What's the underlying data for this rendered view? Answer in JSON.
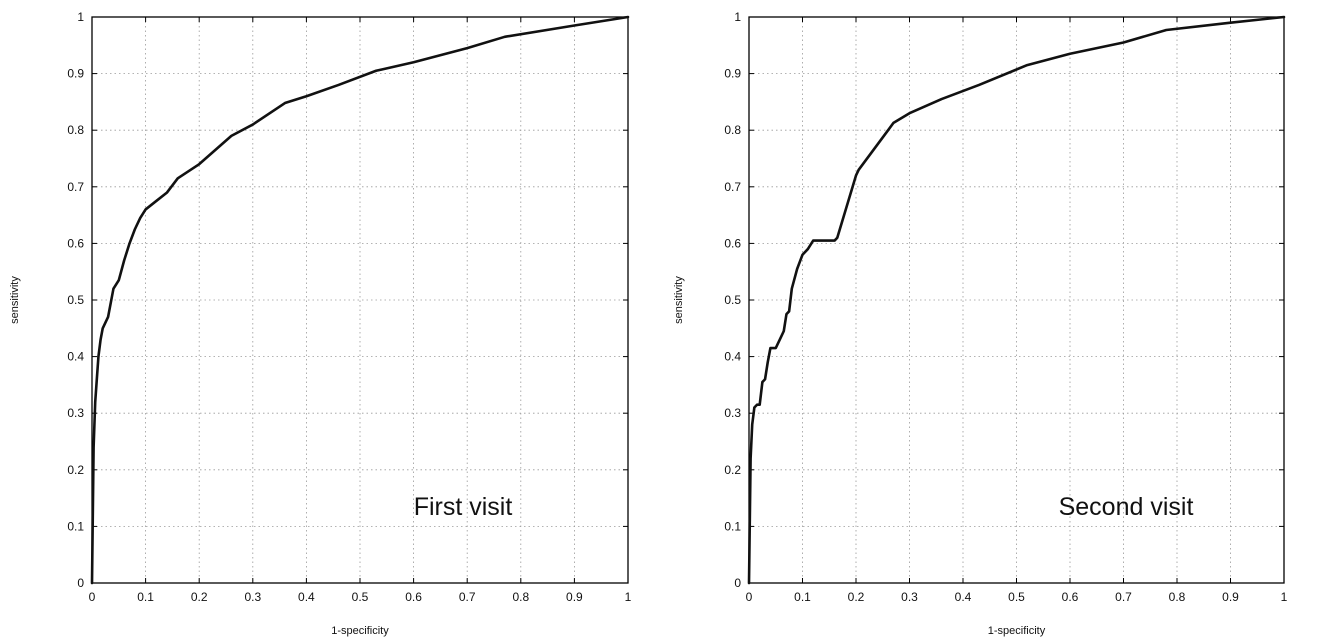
{
  "chart_data": [
    {
      "type": "line",
      "xlabel": "1-specificity",
      "ylabel": "sensitivity",
      "annotation": "First visit",
      "xlim": [
        0,
        1
      ],
      "ylim": [
        0,
        1
      ],
      "xticks": [
        "0",
        "0.1",
        "0.2",
        "0.3",
        "0.4",
        "0.5",
        "0.6",
        "0.7",
        "0.8",
        "0.9",
        "1"
      ],
      "yticks": [
        "0",
        "0.1",
        "0.2",
        "0.3",
        "0.4",
        "0.5",
        "0.6",
        "0.7",
        "0.8",
        "0.9",
        "1"
      ],
      "grid": true,
      "series": [
        {
          "x": [
            0,
            0.003,
            0.006,
            0.009,
            0.012,
            0.016,
            0.02,
            0.03,
            0.04,
            0.05,
            0.06,
            0.07,
            0.08,
            0.09,
            0.1,
            0.12,
            0.14,
            0.16,
            0.2,
            0.26,
            0.3,
            0.36,
            0.4,
            0.46,
            0.53,
            0.6,
            0.7,
            0.77,
            0.9,
            1.0
          ],
          "y": [
            0,
            0.24,
            0.32,
            0.36,
            0.4,
            0.43,
            0.45,
            0.47,
            0.52,
            0.535,
            0.57,
            0.6,
            0.625,
            0.645,
            0.66,
            0.675,
            0.69,
            0.715,
            0.74,
            0.79,
            0.81,
            0.848,
            0.86,
            0.88,
            0.905,
            0.92,
            0.945,
            0.965,
            0.985,
            1.0
          ]
        }
      ]
    },
    {
      "type": "line",
      "xlabel": "1-specificity",
      "ylabel": "sensitivity",
      "annotation": "Second visit",
      "xlim": [
        0,
        1
      ],
      "ylim": [
        0,
        1
      ],
      "xticks": [
        "0",
        "0.1",
        "0.2",
        "0.3",
        "0.4",
        "0.5",
        "0.6",
        "0.7",
        "0.8",
        "0.9",
        "1"
      ],
      "yticks": [
        "0",
        "0.1",
        "0.2",
        "0.3",
        "0.4",
        "0.5",
        "0.6",
        "0.7",
        "0.8",
        "0.9",
        "1"
      ],
      "grid": true,
      "series": [
        {
          "x": [
            0,
            0.003,
            0.006,
            0.01,
            0.015,
            0.02,
            0.025,
            0.03,
            0.035,
            0.04,
            0.05,
            0.06,
            0.065,
            0.07,
            0.075,
            0.08,
            0.09,
            0.1,
            0.11,
            0.12,
            0.14,
            0.16,
            0.165,
            0.2,
            0.205,
            0.26,
            0.27,
            0.3,
            0.36,
            0.43,
            0.52,
            0.6,
            0.7,
            0.78,
            0.9,
            1.0
          ],
          "y": [
            0,
            0.22,
            0.28,
            0.31,
            0.315,
            0.315,
            0.355,
            0.36,
            0.39,
            0.415,
            0.415,
            0.435,
            0.445,
            0.475,
            0.48,
            0.52,
            0.555,
            0.58,
            0.59,
            0.605,
            0.605,
            0.605,
            0.61,
            0.72,
            0.73,
            0.8,
            0.813,
            0.83,
            0.855,
            0.88,
            0.915,
            0.935,
            0.955,
            0.977,
            0.99,
            1.0
          ]
        }
      ]
    }
  ]
}
